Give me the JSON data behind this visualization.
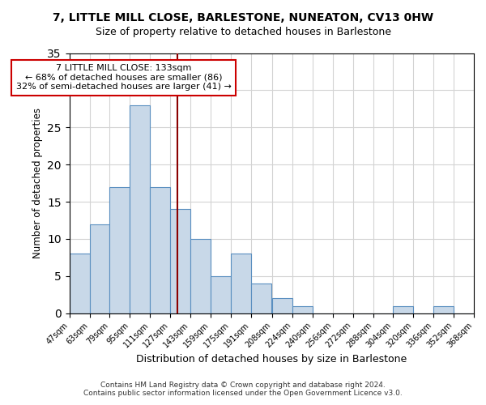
{
  "title": "7, LITTLE MILL CLOSE, BARLESTONE, NUNEATON, CV13 0HW",
  "subtitle": "Size of property relative to detached houses in Barlestone",
  "xlabel": "Distribution of detached houses by size in Barlestone",
  "ylabel": "Number of detached properties",
  "bin_edges": [
    47,
    63,
    79,
    95,
    111,
    127,
    143,
    159,
    175,
    191,
    208,
    224,
    240,
    256,
    272,
    288,
    304,
    320,
    336,
    352,
    368
  ],
  "bin_labels": [
    "47sqm",
    "63sqm",
    "79sqm",
    "95sqm",
    "111sqm",
    "127sqm",
    "143sqm",
    "159sqm",
    "175sqm",
    "191sqm",
    "208sqm",
    "224sqm",
    "240sqm",
    "256sqm",
    "272sqm",
    "288sqm",
    "304sqm",
    "320sqm",
    "336sqm",
    "352sqm",
    "368sqm"
  ],
  "counts": [
    8,
    12,
    17,
    28,
    17,
    14,
    10,
    5,
    8,
    4,
    2,
    1,
    0,
    0,
    0,
    0,
    1,
    0,
    1,
    0
  ],
  "bar_color": "#c8d8e8",
  "bar_edge_color": "#5a8fc0",
  "vline_x": 133,
  "vline_color": "#8b0000",
  "annotation_line1": "7 LITTLE MILL CLOSE: 133sqm",
  "annotation_line2": "← 68% of detached houses are smaller (86)",
  "annotation_line3": "32% of semi-detached houses are larger (41) →",
  "annotation_box_color": "#ffffff",
  "annotation_box_edge_color": "#cc0000",
  "ylim": [
    0,
    35
  ],
  "yticks": [
    0,
    5,
    10,
    15,
    20,
    25,
    30,
    35
  ],
  "footer1": "Contains HM Land Registry data © Crown copyright and database right 2024.",
  "footer2": "Contains public sector information licensed under the Open Government Licence v3.0."
}
